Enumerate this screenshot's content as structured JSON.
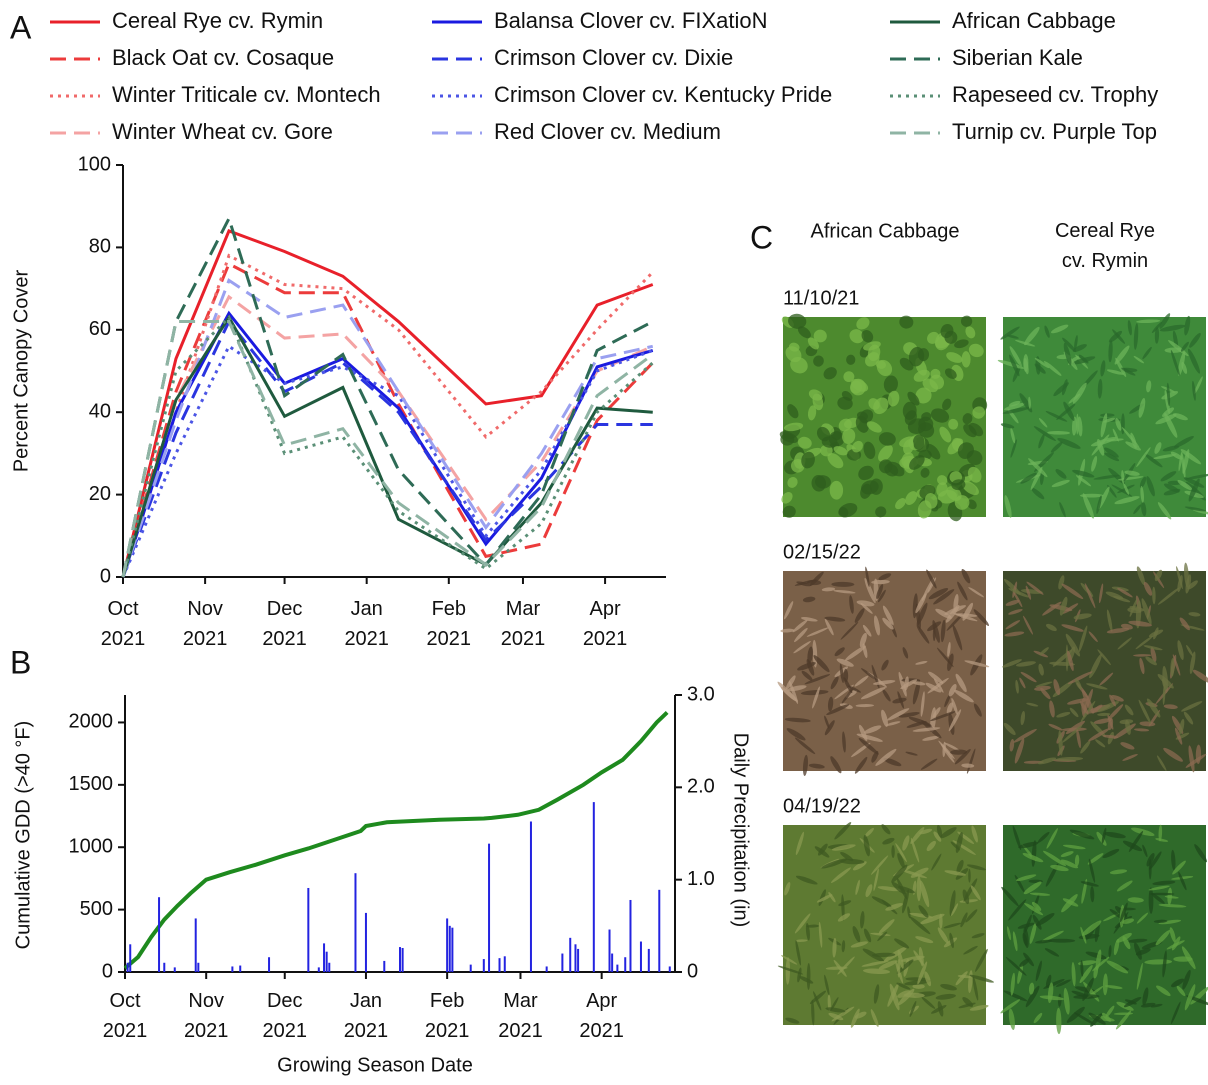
{
  "chart_data": [
    {
      "type": "line",
      "panel": "A",
      "ylabel": "Percent Canopy Cover",
      "x": [
        0,
        20,
        40,
        61,
        83,
        104,
        137,
        158,
        179,
        200
      ],
      "xlim": [
        0,
        205
      ],
      "xticks": [
        {
          "value": 0,
          "label": "Oct\n2021"
        },
        {
          "value": 31,
          "label": "Nov\n2021"
        },
        {
          "value": 61,
          "label": "Dec\n2021"
        },
        {
          "value": 92,
          "label": "Jan\n2021"
        },
        {
          "value": 123,
          "label": "Feb\n2021"
        },
        {
          "value": 151,
          "label": "Mar\n2021"
        },
        {
          "value": 182,
          "label": "Apr\n2021"
        }
      ],
      "ylim": [
        0,
        100
      ],
      "yticks": [
        0,
        20,
        40,
        60,
        80,
        100
      ],
      "series": [
        {
          "name": "Cereal Rye cv. Rymin",
          "color": "#e8202a",
          "linestyle": "solid",
          "values": [
            0,
            53,
            84,
            79,
            73,
            62,
            42,
            44,
            66,
            71
          ]
        },
        {
          "name": "Black Oat cv. Cosaque",
          "color": "#ec3b3b",
          "linestyle": "dashed",
          "values": [
            0,
            45,
            76,
            69,
            69,
            42,
            5,
            8,
            38,
            52
          ]
        },
        {
          "name": "Winter Triticale cv. Montech",
          "color": "#f06a6a",
          "linestyle": "dotted",
          "values": [
            0,
            40,
            78,
            71,
            70,
            60,
            34,
            45,
            60,
            74
          ]
        },
        {
          "name": "Winter Wheat cv. Gore",
          "color": "#f4a3a3",
          "linestyle": "dashed",
          "values": [
            0,
            43,
            68,
            58,
            59,
            45,
            14,
            28,
            50,
            56
          ]
        },
        {
          "name": "Balansa Clover cv. FIXatioN",
          "color": "#1a1ae0",
          "linestyle": "solid",
          "values": [
            0,
            40,
            64,
            47,
            53,
            41,
            8,
            24,
            51,
            55
          ]
        },
        {
          "name": "Crimson Clover cv. Dixie",
          "color": "#2a35e0",
          "linestyle": "dashed",
          "values": [
            0,
            35,
            62,
            45,
            52,
            40,
            9,
            22,
            37,
            37
          ]
        },
        {
          "name": "Crimson Clover cv. Kentucky Pride",
          "color": "#4b55e5",
          "linestyle": "dotted",
          "values": [
            0,
            30,
            56,
            47,
            51,
            44,
            10,
            26,
            50,
            55
          ]
        },
        {
          "name": "Red Clover cv. Medium",
          "color": "#9aa0f0",
          "linestyle": "dashed",
          "values": [
            0,
            38,
            72,
            63,
            66,
            45,
            12,
            30,
            53,
            56
          ]
        },
        {
          "name": "African Cabbage",
          "color": "#1f5a3e",
          "linestyle": "solid",
          "values": [
            0,
            43,
            63,
            39,
            46,
            14,
            3,
            18,
            41,
            40
          ]
        },
        {
          "name": "Siberian Kale",
          "color": "#2e6b56",
          "linestyle": "dashed",
          "values": [
            0,
            62,
            87,
            44,
            54,
            26,
            3,
            20,
            55,
            62
          ]
        },
        {
          "name": "Rapeseed cv. Trophy",
          "color": "#5a8f76",
          "linestyle": "dotted",
          "values": [
            0,
            50,
            63,
            30,
            34,
            16,
            2,
            13,
            40,
            52
          ]
        },
        {
          "name": "Turnip cv. Purple Top",
          "color": "#8fb4a4",
          "linestyle": "dashed",
          "values": [
            0,
            62,
            62,
            32,
            36,
            18,
            3,
            17,
            44,
            54
          ]
        }
      ]
    },
    {
      "type": "combo",
      "panel": "B",
      "xlabel": "Growing Season Date",
      "ylabel": "Cumulative GDD (>40 °F)",
      "y2label": "Daily Precipitation (in)",
      "xlim": [
        0,
        210
      ],
      "xticks": [
        {
          "value": 0,
          "label": "Oct\n2021"
        },
        {
          "value": 31,
          "label": "Nov\n2021"
        },
        {
          "value": 61,
          "label": "Dec\n2021"
        },
        {
          "value": 92,
          "label": "Jan\n2021"
        },
        {
          "value": 123,
          "label": "Feb\n2021"
        },
        {
          "value": 151,
          "label": "Mar\n2021"
        },
        {
          "value": 182,
          "label": "Apr\n2021"
        }
      ],
      "ylim": [
        0,
        2220
      ],
      "yticks": [
        0,
        500,
        1000,
        1500,
        2000
      ],
      "y2lim": [
        0,
        3
      ],
      "y2ticks": [
        0,
        {
          "value": 1,
          "label": "1.0"
        },
        {
          "value": 2,
          "label": "2.0"
        },
        {
          "value": 3,
          "label": "3.0"
        }
      ],
      "series": [
        {
          "type": "line",
          "color": "#1e8a1e",
          "x": [
            0,
            5,
            10,
            15,
            20,
            25,
            31,
            40,
            50,
            61,
            70,
            80,
            90,
            92,
            100,
            110,
            120,
            137,
            140,
            150,
            158,
            165,
            175,
            182,
            190,
            197,
            203,
            207
          ],
          "values": [
            30,
            120,
            280,
            420,
            530,
            630,
            740,
            800,
            860,
            935,
            990,
            1060,
            1130,
            1170,
            1200,
            1210,
            1220,
            1230,
            1235,
            1260,
            1300,
            1380,
            1500,
            1600,
            1700,
            1850,
            2000,
            2080
          ]
        },
        {
          "type": "bar",
          "axis": "y2",
          "color": "#2323e0",
          "x": [
            1,
            2,
            13,
            15,
            19,
            27,
            28,
            41,
            44,
            55,
            70,
            74,
            76,
            77,
            78,
            88,
            92,
            99,
            105,
            106,
            123,
            124,
            125,
            132,
            137,
            139,
            143,
            145,
            155,
            161,
            167,
            170,
            172,
            173,
            179,
            185,
            186,
            188,
            191,
            193,
            197,
            200,
            204,
            208
          ],
          "values": [
            0.1,
            0.3,
            0.81,
            0.1,
            0.05,
            0.58,
            0.1,
            0.06,
            0.07,
            0.16,
            0.91,
            0.05,
            0.31,
            0.22,
            0.1,
            1.07,
            0.64,
            0.12,
            0.27,
            0.26,
            0.58,
            0.5,
            0.48,
            0.08,
            0.14,
            1.39,
            0.15,
            0.17,
            1.63,
            0.06,
            0.2,
            0.37,
            0.3,
            0.25,
            1.84,
            0.46,
            0.2,
            0.08,
            0.16,
            0.78,
            0.33,
            0.25,
            0.89,
            0.06
          ]
        }
      ]
    }
  ],
  "panel_c": {
    "label": "C",
    "columns": [
      "African Cabbage",
      "Cereal Rye\ncv. Rymin"
    ],
    "rows": [
      "11/10/21",
      "02/15/22",
      "04/19/22"
    ]
  }
}
